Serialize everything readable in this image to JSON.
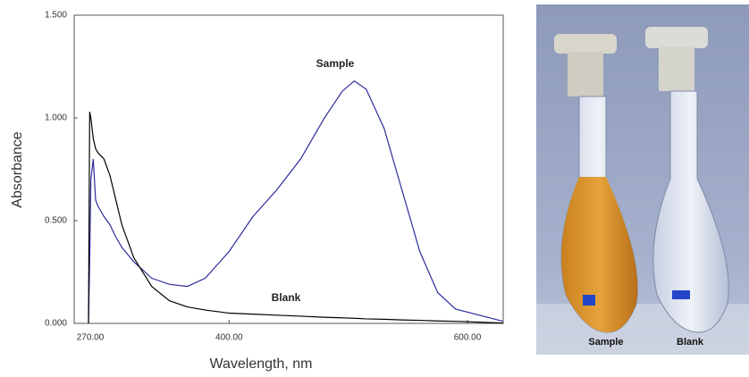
{
  "chart_data": {
    "type": "line",
    "x_label": "Wavelength, nm",
    "y_label": "Absorbance",
    "x": [
      282,
      283,
      284,
      286,
      288,
      290,
      295,
      300,
      305,
      310,
      320,
      335,
      350,
      365,
      380,
      400,
      420,
      440,
      460,
      480,
      495,
      505,
      515,
      530,
      545,
      560,
      575,
      590,
      610,
      630
    ],
    "series": [
      {
        "name": "Sample",
        "color": "#2b2b9c",
        "values": [
          0,
          0.3,
          0.7,
          0.8,
          0.6,
          0.57,
          0.52,
          0.48,
          0.42,
          0.37,
          0.3,
          0.22,
          0.19,
          0.18,
          0.22,
          0.35,
          0.52,
          0.65,
          0.8,
          1.0,
          1.13,
          1.18,
          1.14,
          0.95,
          0.65,
          0.35,
          0.15,
          0.07,
          0.04,
          0.01
        ]
      },
      {
        "name": "Blank",
        "color": "#000000",
        "values": [
          0,
          1.03,
          1.0,
          0.9,
          0.85,
          0.83,
          0.8,
          0.72,
          0.6,
          0.48,
          0.32,
          0.18,
          0.11,
          0.08,
          0.065,
          0.05,
          0.045,
          0.04,
          0.035,
          0.03,
          0.027,
          0.025,
          0.022,
          0.02,
          0.017,
          0.015,
          0.012,
          0.01,
          0.006,
          0.002
        ]
      }
    ],
    "xlim": [
      270,
      630
    ],
    "xticks": [
      {
        "value": 270,
        "label": "270.00"
      },
      {
        "value": 400,
        "label": "400.00"
      },
      {
        "value": 600,
        "label": "600.00"
      }
    ],
    "ylim": [
      0,
      1.5
    ],
    "yticks": [
      {
        "value": 0,
        "label": "0.000"
      },
      {
        "value": 0.5,
        "label": "0.500"
      },
      {
        "value": 1,
        "label": "1.000"
      },
      {
        "value": 1.5,
        "label": "1.500"
      }
    ],
    "grid": false
  },
  "photo": {
    "labels": [
      "Sample",
      "Blank"
    ]
  }
}
